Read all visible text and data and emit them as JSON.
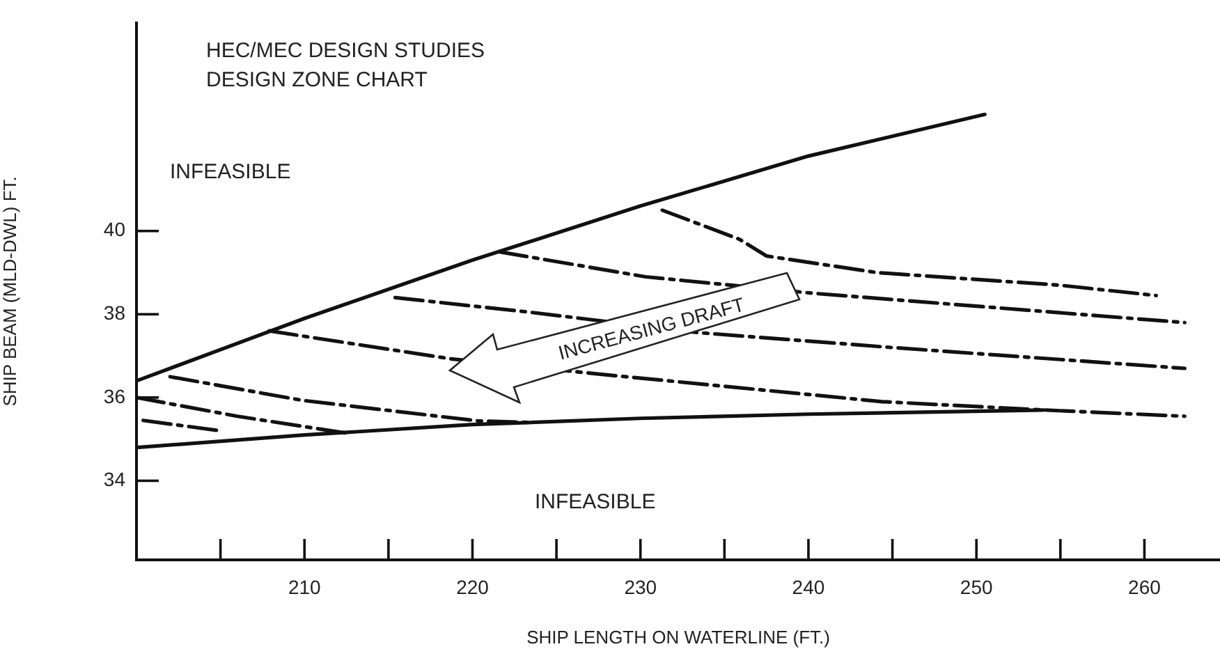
{
  "chart_data": {
    "type": "line",
    "title": "HEC/MEC DESIGN STUDIES",
    "subtitle": "DESIGN ZONE CHART",
    "xlabel": "SHIP LENGTH ON WATERLINE (FT.)",
    "ylabel": "SHIP BEAM (MLD-DWL) FT.",
    "annotations": [
      "INFEASIBLE",
      "INFEASIBLE",
      "INCREASING DRAFT"
    ],
    "xlim": [
      200,
      264.5
    ],
    "ylim": [
      32.1,
      45
    ],
    "xticks": [
      {
        "value": 205,
        "label": null
      },
      210,
      {
        "value": 215,
        "label": null
      },
      220,
      {
        "value": 225,
        "label": null
      },
      230,
      {
        "value": 235,
        "label": null
      },
      240,
      {
        "value": 245,
        "label": null
      },
      250,
      {
        "value": 255,
        "label": null
      },
      260
    ],
    "yticks": [
      34,
      36,
      38,
      40
    ],
    "grid": false,
    "legend": false,
    "marker": "none",
    "series": [
      {
        "color": "#111111",
        "line_style": "solid",
        "x": [
          200,
          210,
          220,
          230,
          240,
          250.5
        ],
        "values": [
          36.4,
          37.9,
          39.3,
          40.6,
          41.8,
          42.8
        ]
      },
      {
        "color": "#111111",
        "line_style": "solid",
        "x": [
          200,
          210,
          220,
          230,
          240,
          254
        ],
        "values": [
          34.8,
          35.1,
          35.35,
          35.5,
          35.6,
          35.7
        ]
      },
      {
        "color": "#111111",
        "line_style": "dashed",
        "x": [
          231.3,
          235.9,
          237.5,
          244.1,
          254.9,
          260.7
        ],
        "values": [
          40.5,
          39.8,
          39.4,
          39.0,
          38.7,
          38.45
        ]
      },
      {
        "color": "#111111",
        "line_style": "dashed",
        "x": [
          221.6,
          230.3,
          240.4,
          262.4
        ],
        "values": [
          39.5,
          38.9,
          38.5,
          37.8
        ]
      },
      {
        "color": "#111111",
        "line_style": "dashed",
        "x": [
          215.4,
          223.4,
          233.4,
          245,
          262.4
        ],
        "values": [
          38.4,
          38.05,
          37.56,
          37.2,
          36.7
        ]
      },
      {
        "color": "#111111",
        "line_style": "dashed",
        "x": [
          207.9,
          218.7,
          227.6,
          244.4,
          254,
          262.4
        ],
        "values": [
          37.6,
          36.93,
          36.56,
          35.9,
          35.7,
          35.55
        ]
      },
      {
        "color": "#111111",
        "line_style": "dashed",
        "x": [
          202,
          209.9,
          220.3,
          223.4
        ],
        "values": [
          36.5,
          35.93,
          35.44,
          35.4
        ]
      },
      {
        "color": "#111111",
        "line_style": "dashed",
        "x": [
          200,
          206,
          212.4
        ],
        "values": [
          36.0,
          35.55,
          35.15
        ]
      },
      {
        "color": "#111111",
        "line_style": "dashed",
        "x": [
          200.4,
          205
        ],
        "values": [
          35.45,
          35.2
        ]
      }
    ]
  }
}
